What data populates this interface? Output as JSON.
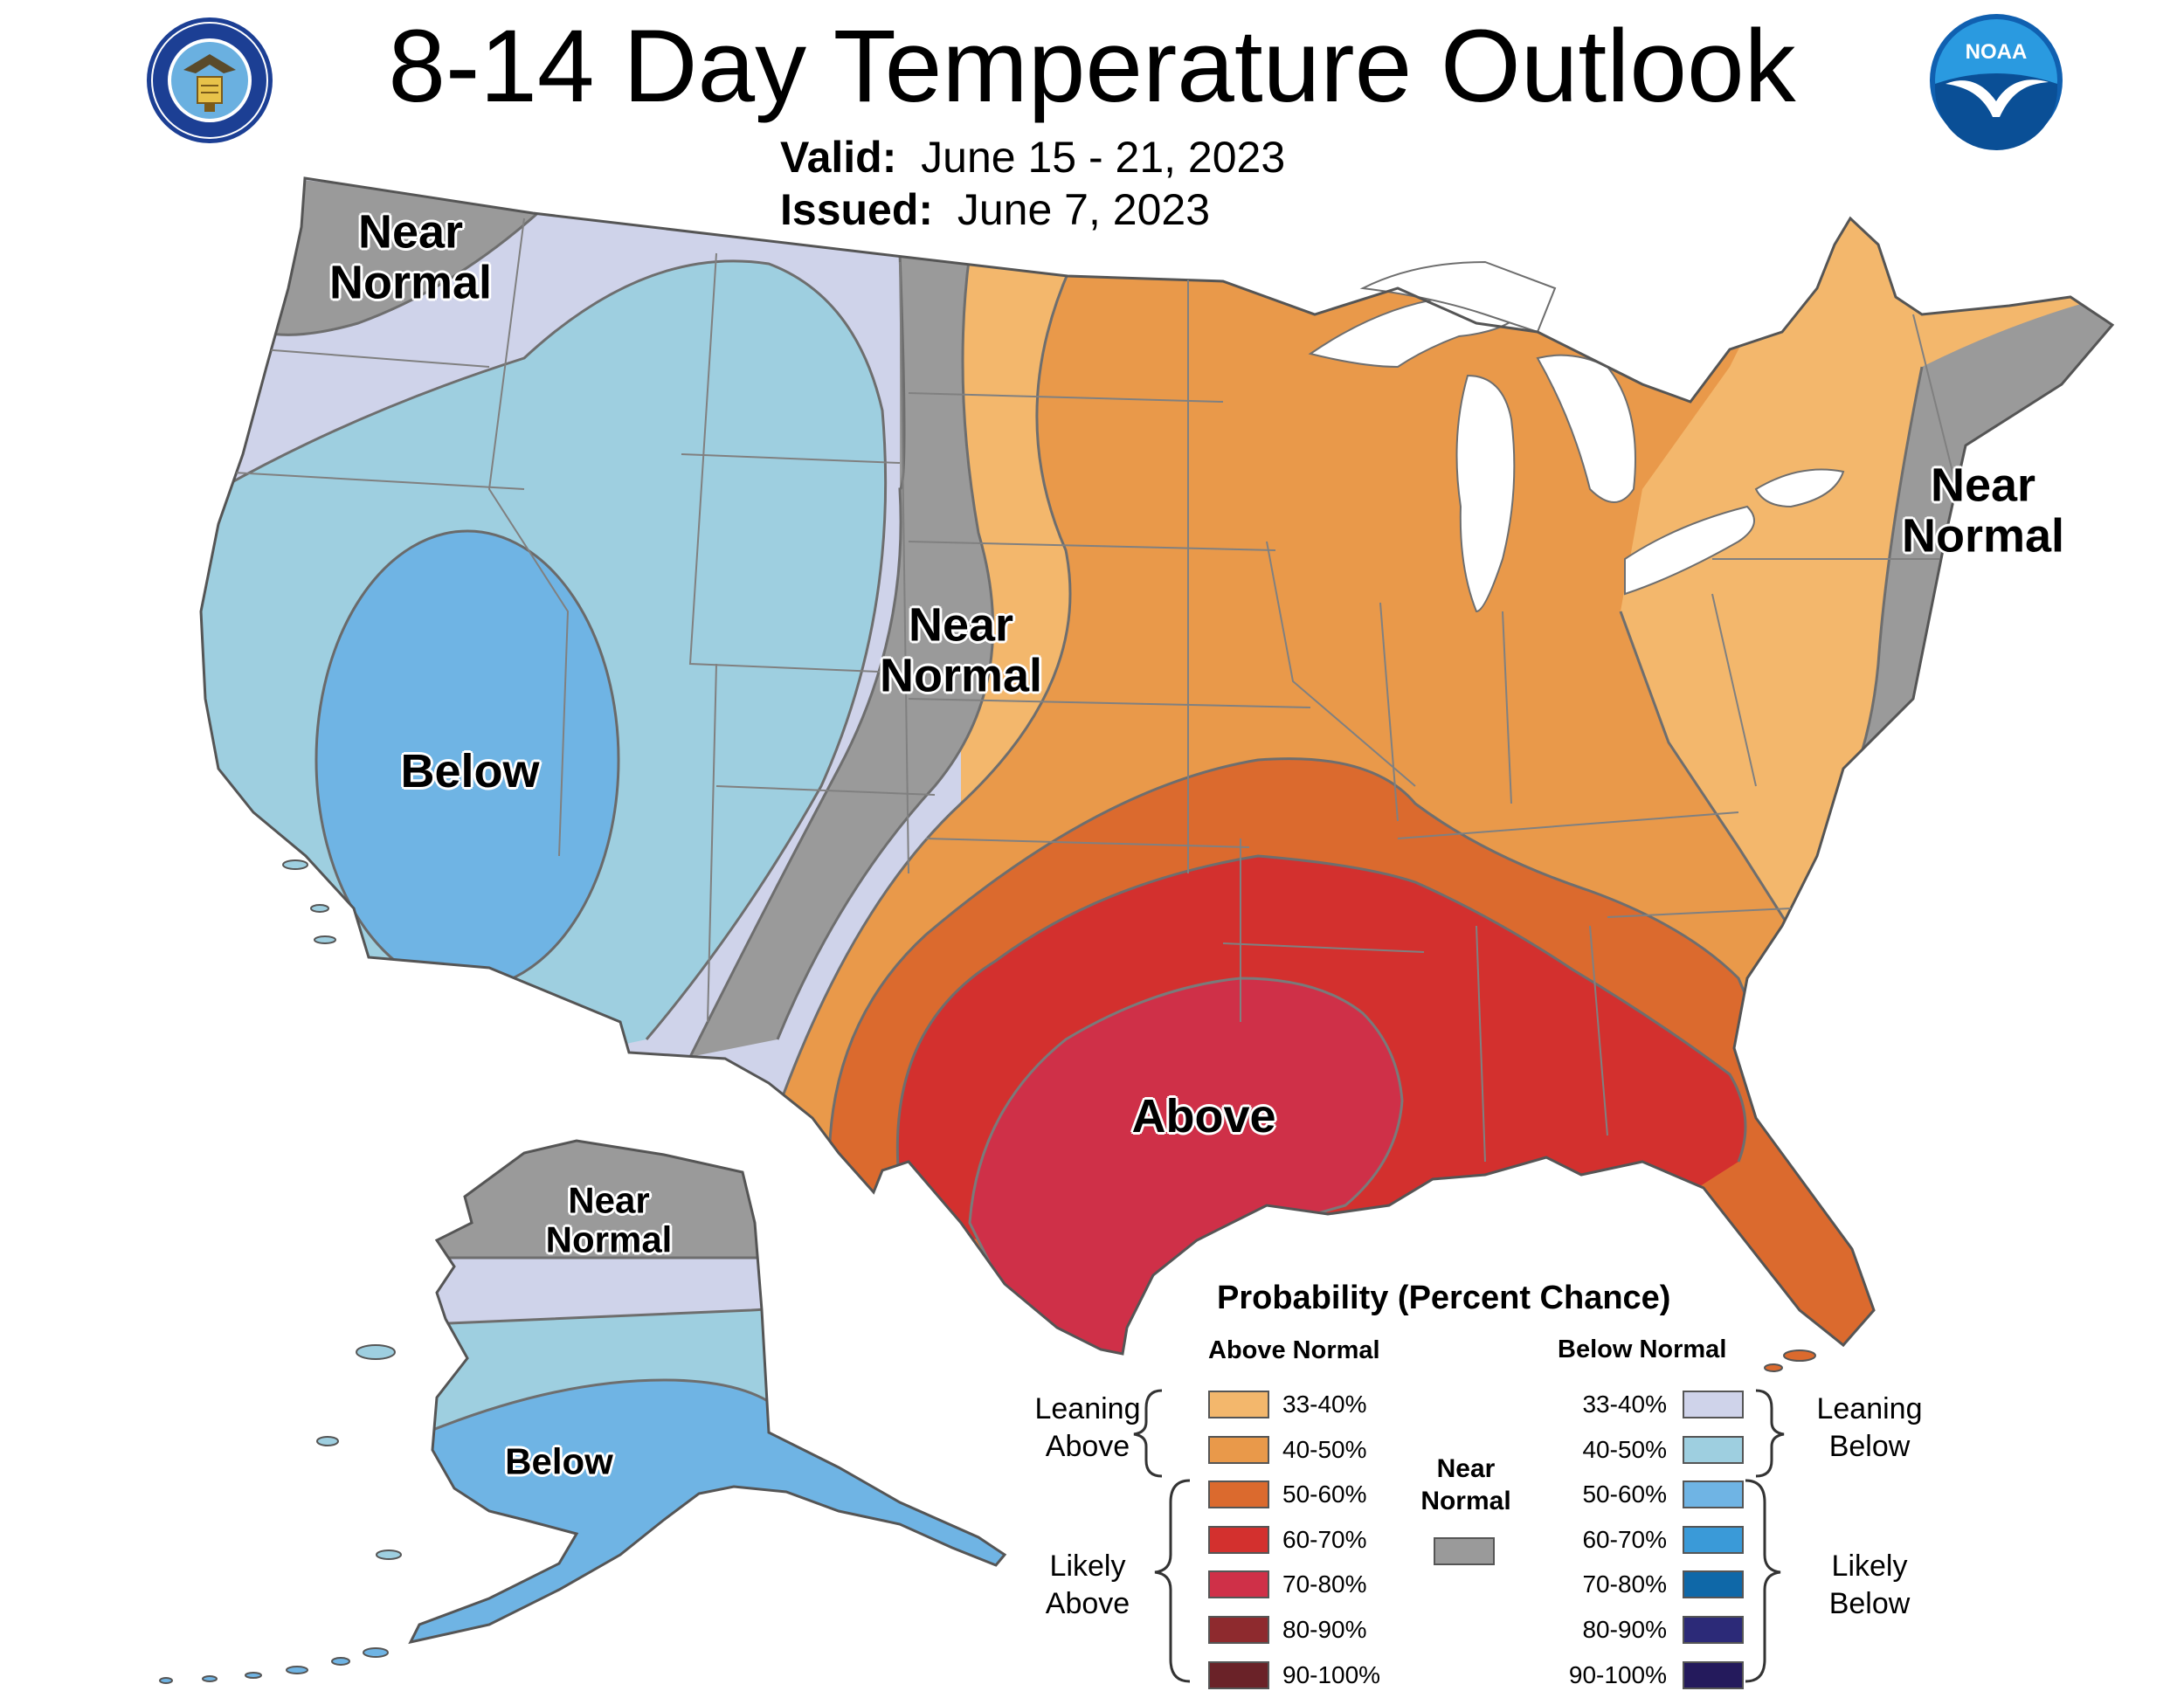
{
  "header": {
    "title": "8-14 Day Temperature Outlook",
    "valid_label": "Valid:",
    "valid_value": "June 15 - 21, 2023",
    "issued_label": "Issued:",
    "issued_value": "June 7, 2023"
  },
  "logos": {
    "left": "seal-icon",
    "right": "noaa-logo-icon",
    "noaa_text": "NOAA"
  },
  "colors": {
    "above_33_40": "#f3b76c",
    "above_40_50": "#e9994a",
    "above_50_60": "#db6a2e",
    "above_60_70": "#d3302e",
    "above_70_80": "#cf3048",
    "above_80_90": "#8e2a2e",
    "above_90_100": "#6a2228",
    "below_33_40": "#cfd3ea",
    "below_40_50": "#9ecfe0",
    "below_50_60": "#6fb4e4",
    "below_60_70": "#3a9ad8",
    "below_70_80": "#0f68a8",
    "below_80_90": "#2c2a78",
    "below_90_100": "#241a5c",
    "near_normal": "#9a9a9a",
    "great_lakes": "#ffffff"
  },
  "map_labels": {
    "pacific_nw": "Near\nNormal",
    "plains": "Near\nNormal",
    "northeast": "Near\nNormal",
    "west": "Below",
    "south": "Above",
    "alaska_north": "Near\nNormal",
    "alaska_south": "Below"
  },
  "legend": {
    "title": "Probability (Percent Chance)",
    "above_header": "Above Normal",
    "below_header": "Below Normal",
    "leaning_above": "Leaning\nAbove",
    "likely_above": "Likely\nAbove",
    "leaning_below": "Leaning\nBelow",
    "likely_below": "Likely\nBelow",
    "near_normal": "Near\nNormal",
    "above": [
      {
        "label": "33-40%",
        "color": "#f3b76c"
      },
      {
        "label": "40-50%",
        "color": "#e9994a"
      },
      {
        "label": "50-60%",
        "color": "#db6a2e"
      },
      {
        "label": "60-70%",
        "color": "#d3302e"
      },
      {
        "label": "70-80%",
        "color": "#cf3048"
      },
      {
        "label": "80-90%",
        "color": "#8e2a2e"
      },
      {
        "label": "90-100%",
        "color": "#6a2228"
      }
    ],
    "below": [
      {
        "label": "33-40%",
        "color": "#cfd3ea"
      },
      {
        "label": "40-50%",
        "color": "#9ecfe0"
      },
      {
        "label": "50-60%",
        "color": "#6fb4e4"
      },
      {
        "label": "60-70%",
        "color": "#3a9ad8"
      },
      {
        "label": "70-80%",
        "color": "#0f68a8"
      },
      {
        "label": "80-90%",
        "color": "#2c2a78"
      },
      {
        "label": "90-100%",
        "color": "#241a5c"
      }
    ]
  }
}
